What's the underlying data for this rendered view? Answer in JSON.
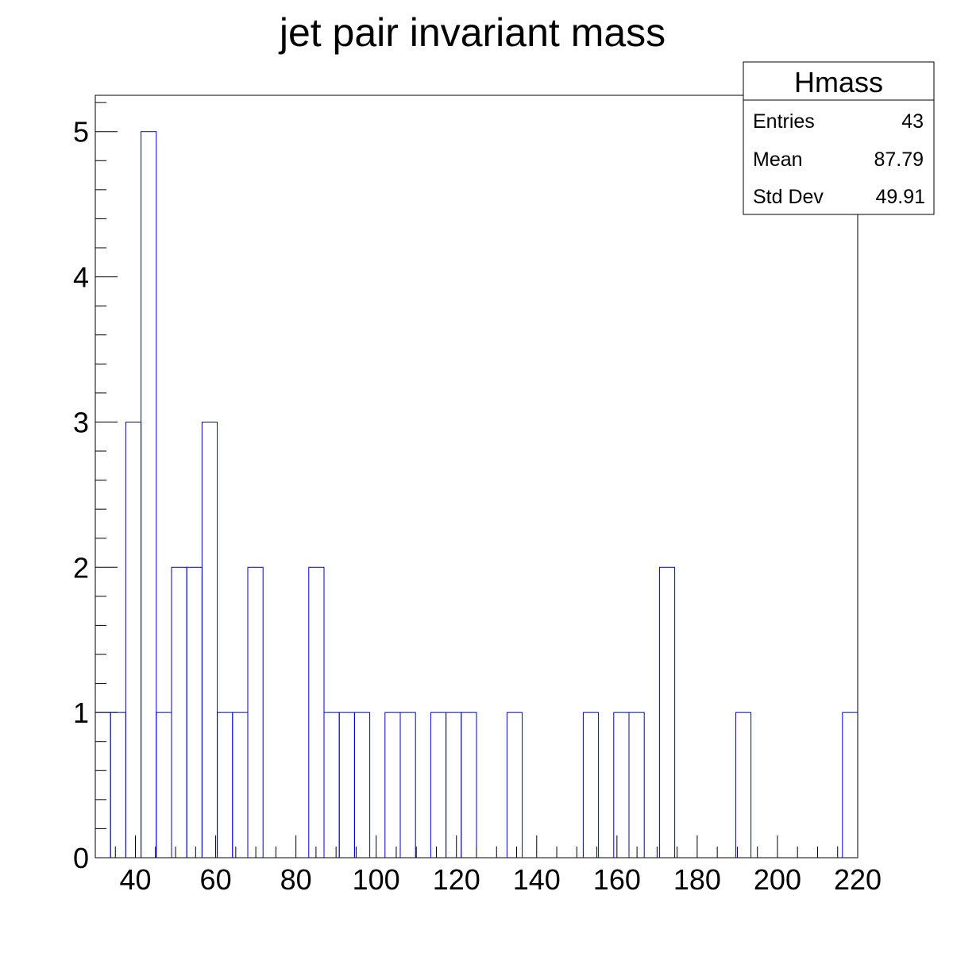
{
  "chart_data": {
    "type": "histogram",
    "title": "jet pair invariant mass",
    "xlabel": "",
    "ylabel": "",
    "xlim": [
      30,
      220
    ],
    "ylim": [
      0,
      5.25
    ],
    "bin_width": 3.8,
    "x_ticks": [
      40,
      60,
      80,
      100,
      120,
      140,
      160,
      180,
      200,
      220
    ],
    "y_ticks": [
      0,
      1,
      2,
      3,
      4,
      5
    ],
    "values": [
      1,
      1,
      3,
      5,
      1,
      2,
      2,
      3,
      1,
      1,
      2,
      0,
      0,
      0,
      2,
      1,
      1,
      1,
      0,
      1,
      1,
      0,
      1,
      1,
      1,
      0,
      0,
      1,
      0,
      0,
      0,
      0,
      1,
      0,
      1,
      1,
      0,
      2,
      0,
      0,
      0,
      0,
      1,
      0,
      0,
      0,
      0,
      0,
      0,
      1
    ],
    "series_color": "#0000cc",
    "grid": false,
    "stats_box": {
      "name": "Hmass",
      "entries": [
        {
          "label": "Entries",
          "value": "43"
        },
        {
          "label": "Mean",
          "value": "87.79"
        },
        {
          "label": "Std Dev",
          "value": "49.91"
        }
      ]
    }
  }
}
